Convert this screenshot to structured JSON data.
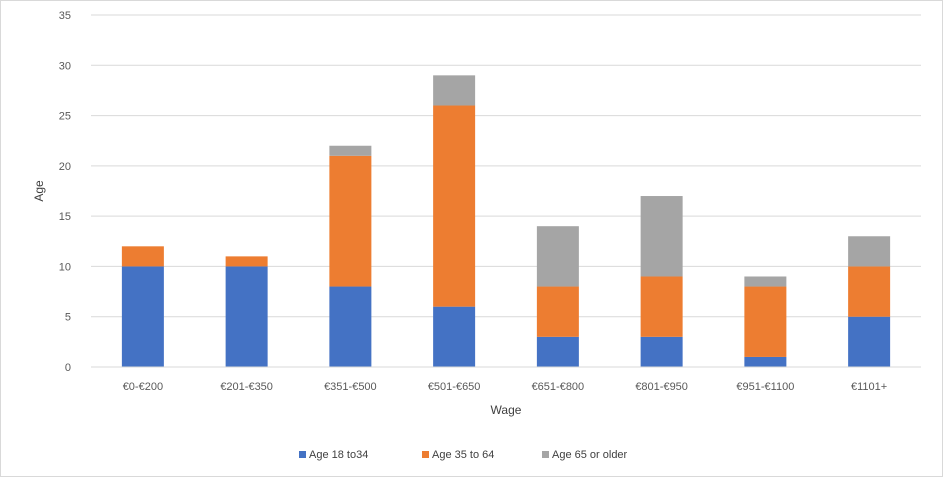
{
  "chart_data": {
    "type": "bar",
    "stacked": true,
    "title": "",
    "xlabel": "Wage",
    "ylabel": "Age",
    "ylim": [
      0,
      35
    ],
    "yticks": [
      0,
      5,
      10,
      15,
      20,
      25,
      30,
      35
    ],
    "grid": true,
    "legend_position": "bottom",
    "categories": [
      "€0-€200",
      "€201-€350",
      "€351-€500",
      "€501-€650",
      "€651-€800",
      "€801-€950",
      "€951-€1100",
      "€1101+"
    ],
    "series": [
      {
        "name": "Age 18 to34",
        "color": "#4472c4",
        "values": [
          10,
          10,
          8,
          6,
          3,
          3,
          1,
          5
        ]
      },
      {
        "name": "Age 35 to 64",
        "color": "#ed7d31",
        "values": [
          2,
          1,
          13,
          20,
          5,
          6,
          7,
          5
        ]
      },
      {
        "name": "Age 65 or older",
        "color": "#a5a5a5",
        "values": [
          0,
          0,
          1,
          3,
          6,
          8,
          1,
          3
        ]
      }
    ]
  }
}
